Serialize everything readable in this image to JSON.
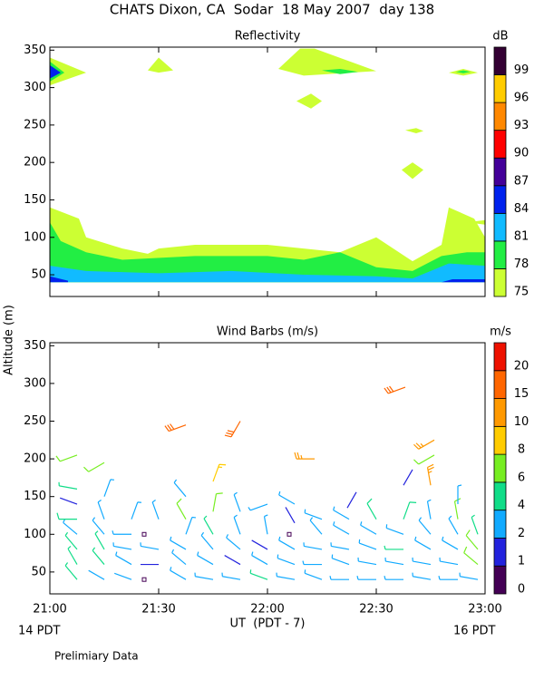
{
  "title": "CHATS Dixon, CA  Sodar  18 May 2007  day 138",
  "ylabel": "Altitude (m)",
  "xlabel": "UT  (PDT - 7)",
  "left_note": "14 PDT",
  "right_note": "16 PDT",
  "footnote": "Prelimiary Data",
  "chart_data": [
    {
      "type": "contour",
      "title": "Reflectivity",
      "xlim": [
        0,
        120
      ],
      "ylim": [
        21,
        354
      ],
      "yticks": [
        50,
        100,
        150,
        200,
        250,
        300,
        350
      ],
      "colorbar": {
        "title": "dB",
        "levels": [
          75,
          78,
          81,
          84,
          87,
          90,
          93,
          96,
          99
        ],
        "colors": [
          "#ccff33",
          "#22ee44",
          "#11bbff",
          "#0022ee",
          "#440099",
          "#ff0000",
          "#ff8800",
          "#ffcc00",
          "#330033"
        ]
      },
      "regions": [
        {
          "level": 75,
          "points": [
            [
              0,
              140
            ],
            [
              8,
              125
            ],
            [
              10,
              100
            ],
            [
              20,
              85
            ],
            [
              27,
              78
            ],
            [
              30,
              85
            ],
            [
              40,
              90
            ],
            [
              60,
              90
            ],
            [
              70,
              85
            ],
            [
              80,
              80
            ],
            [
              90,
              100
            ],
            [
              100,
              68
            ],
            [
              108,
              90
            ],
            [
              110,
              140
            ],
            [
              117,
              125
            ],
            [
              120,
              100
            ],
            [
              120,
              40
            ],
            [
              0,
              40
            ]
          ]
        },
        {
          "level": 75,
          "points": [
            [
              0,
              340
            ],
            [
              10,
              320
            ],
            [
              0,
              303
            ]
          ]
        },
        {
          "level": 75,
          "points": [
            [
              27,
              323
            ],
            [
              30,
              340
            ],
            [
              34,
              323
            ],
            [
              30,
              320
            ]
          ]
        },
        {
          "level": 75,
          "points": [
            [
              63,
              325
            ],
            [
              69,
              352
            ],
            [
              73,
              352
            ],
            [
              90,
              322
            ],
            [
              70,
              316
            ]
          ]
        },
        {
          "level": 75,
          "points": [
            [
              68,
              282
            ],
            [
              72,
              292
            ],
            [
              75,
              282
            ],
            [
              72,
              272
            ]
          ]
        },
        {
          "level": 75,
          "points": [
            [
              98,
              243
            ],
            [
              101,
              246
            ],
            [
              103,
              242
            ],
            [
              101,
              239
            ]
          ]
        },
        {
          "level": 75,
          "points": [
            [
              97,
              190
            ],
            [
              100,
              200
            ],
            [
              103,
              190
            ],
            [
              100,
              178
            ]
          ]
        },
        {
          "level": 75,
          "points": [
            [
              110,
              320
            ],
            [
              114,
              325
            ],
            [
              118,
              320
            ],
            [
              114,
              316
            ]
          ]
        },
        {
          "level": 75,
          "points": [
            [
              115,
              120
            ],
            [
              120,
              123
            ],
            [
              120,
              117
            ]
          ]
        },
        {
          "level": 78,
          "points": [
            [
              0,
              120
            ],
            [
              3,
              95
            ],
            [
              10,
              80
            ],
            [
              20,
              70
            ],
            [
              40,
              75
            ],
            [
              60,
              75
            ],
            [
              70,
              70
            ],
            [
              80,
              80
            ],
            [
              90,
              60
            ],
            [
              100,
              55
            ],
            [
              108,
              75
            ],
            [
              115,
              80
            ],
            [
              120,
              80
            ],
            [
              120,
              40
            ],
            [
              0,
              40
            ]
          ]
        },
        {
          "level": 78,
          "points": [
            [
              0,
              335
            ],
            [
              4,
              320
            ],
            [
              0,
              308
            ]
          ]
        },
        {
          "level": 78,
          "points": [
            [
              75,
              323
            ],
            [
              80,
              325
            ],
            [
              85,
              321
            ],
            [
              80,
              318
            ]
          ]
        },
        {
          "level": 78,
          "points": [
            [
              112,
              321
            ],
            [
              114,
              323
            ],
            [
              116,
              321
            ],
            [
              114,
              319
            ]
          ]
        },
        {
          "level": 81,
          "points": [
            [
              0,
              62
            ],
            [
              10,
              55
            ],
            [
              30,
              52
            ],
            [
              50,
              55
            ],
            [
              70,
              50
            ],
            [
              90,
              48
            ],
            [
              100,
              45
            ],
            [
              110,
              65
            ],
            [
              120,
              62
            ],
            [
              120,
              40
            ],
            [
              0,
              40
            ]
          ]
        },
        {
          "level": 84,
          "points": [
            [
              0,
              48
            ],
            [
              5,
              42
            ],
            [
              5,
              40
            ],
            [
              0,
              40
            ]
          ]
        },
        {
          "level": 84,
          "points": [
            [
              0,
              330
            ],
            [
              3,
              320
            ],
            [
              0,
              312
            ]
          ]
        },
        {
          "level": 84,
          "points": [
            [
              108,
              40
            ],
            [
              111,
              44
            ],
            [
              120,
              44
            ],
            [
              120,
              40
            ]
          ]
        }
      ]
    },
    {
      "type": "barbs",
      "title": "Wind Barbs (m/s)",
      "xlim": [
        0,
        120
      ],
      "ylim": [
        21,
        354
      ],
      "yticks": [
        50,
        100,
        150,
        200,
        250,
        300,
        350
      ],
      "xticks": [
        {
          "value": 0,
          "label": "21:00"
        },
        {
          "value": 30,
          "label": "21:30"
        },
        {
          "value": 60,
          "label": "22:00"
        },
        {
          "value": 90,
          "label": "22:30"
        },
        {
          "value": 120,
          "label": "23:00"
        }
      ],
      "colorbar": {
        "title": "m/s",
        "levels": [
          0,
          1,
          2,
          4,
          6,
          8,
          10,
          15,
          20
        ],
        "colors": [
          "#440055",
          "#2222dd",
          "#11aaff",
          "#11dd88",
          "#77ee22",
          "#ffcc00",
          "#ff9900",
          "#ff6600",
          "#ee1100"
        ]
      },
      "barbs": [
        [
          7.5,
          40,
          4,
          320
        ],
        [
          7.5,
          60,
          4,
          330
        ],
        [
          7.5,
          80,
          4,
          320
        ],
        [
          7.5,
          100,
          3,
          310
        ],
        [
          7.5,
          120,
          5,
          270
        ],
        [
          7.5,
          140,
          1,
          290
        ],
        [
          7.5,
          160,
          4,
          280
        ],
        [
          7.5,
          205,
          6,
          250
        ],
        [
          15,
          40,
          2,
          300
        ],
        [
          15,
          60,
          4,
          320
        ],
        [
          15,
          80,
          4,
          330
        ],
        [
          15,
          100,
          3,
          320
        ],
        [
          15,
          120,
          3,
          340
        ],
        [
          15,
          150,
          3,
          20
        ],
        [
          15,
          195,
          6,
          240
        ],
        [
          22.5,
          40,
          2,
          290
        ],
        [
          22.5,
          60,
          3,
          300
        ],
        [
          22.5,
          80,
          3,
          280
        ],
        [
          22.5,
          100,
          3,
          270
        ],
        [
          22.5,
          120,
          3,
          20
        ],
        [
          26,
          40,
          0,
          0
        ],
        [
          26,
          100,
          0,
          0
        ],
        [
          30,
          60,
          1,
          270
        ],
        [
          30,
          80,
          3,
          280
        ],
        [
          30,
          120,
          3,
          340
        ],
        [
          37.5,
          40,
          3,
          300
        ],
        [
          37.5,
          60,
          3,
          310
        ],
        [
          37.5,
          80,
          3,
          300
        ],
        [
          37.5,
          100,
          3,
          20
        ],
        [
          37.5,
          120,
          6,
          330
        ],
        [
          37.5,
          150,
          3,
          320
        ],
        [
          37.5,
          245,
          15,
          250
        ],
        [
          45,
          40,
          3,
          280
        ],
        [
          45,
          60,
          3,
          300
        ],
        [
          45,
          80,
          3,
          320
        ],
        [
          45,
          100,
          4,
          330
        ],
        [
          45,
          130,
          7,
          10
        ],
        [
          45,
          170,
          8,
          20
        ],
        [
          52.5,
          40,
          3,
          280
        ],
        [
          52.5,
          60,
          1,
          300
        ],
        [
          52.5,
          80,
          3,
          310
        ],
        [
          52.5,
          100,
          3,
          340
        ],
        [
          52.5,
          130,
          3,
          340
        ],
        [
          52.5,
          250,
          15,
          210
        ],
        [
          60,
          40,
          4,
          290
        ],
        [
          60,
          60,
          3,
          300
        ],
        [
          60,
          80,
          1,
          300
        ],
        [
          60,
          100,
          3,
          350
        ],
        [
          60,
          140,
          3,
          250
        ],
        [
          67.5,
          40,
          3,
          280
        ],
        [
          67.5,
          60,
          3,
          290
        ],
        [
          67.5,
          80,
          3,
          300
        ],
        [
          66,
          100,
          0,
          0
        ],
        [
          67.5,
          115,
          1,
          330
        ],
        [
          67.5,
          140,
          3,
          300
        ],
        [
          73,
          200,
          14,
          270
        ],
        [
          75,
          40,
          3,
          290
        ],
        [
          75,
          60,
          3,
          270
        ],
        [
          75,
          80,
          3,
          280
        ],
        [
          75,
          100,
          3,
          320
        ],
        [
          75,
          120,
          3,
          290
        ],
        [
          82.5,
          40,
          3,
          270
        ],
        [
          82.5,
          60,
          3,
          290
        ],
        [
          82.5,
          80,
          3,
          280
        ],
        [
          82.5,
          100,
          3,
          300
        ],
        [
          82.5,
          120,
          3,
          300
        ],
        [
          82,
          135,
          1,
          30
        ],
        [
          90,
          40,
          3,
          270
        ],
        [
          90,
          60,
          3,
          280
        ],
        [
          90,
          80,
          3,
          290
        ],
        [
          90,
          100,
          3,
          300
        ],
        [
          90,
          120,
          5,
          330
        ],
        [
          97.5,
          40,
          3,
          270
        ],
        [
          97.5,
          60,
          3,
          280
        ],
        [
          97.5,
          80,
          4,
          270
        ],
        [
          97.5,
          100,
          3,
          290
        ],
        [
          97.5,
          120,
          5,
          20
        ],
        [
          97.5,
          165,
          1,
          30
        ],
        [
          98,
          295,
          15,
          250
        ],
        [
          105,
          40,
          3,
          280
        ],
        [
          105,
          60,
          3,
          280
        ],
        [
          105,
          80,
          3,
          300
        ],
        [
          105,
          100,
          3,
          320
        ],
        [
          105,
          120,
          3,
          350
        ],
        [
          105,
          165,
          14,
          350
        ],
        [
          106,
          205,
          6,
          240
        ],
        [
          106,
          225,
          14,
          240
        ],
        [
          112.5,
          40,
          3,
          270
        ],
        [
          112.5,
          60,
          3,
          280
        ],
        [
          112.5,
          80,
          3,
          300
        ],
        [
          112.5,
          100,
          3,
          330
        ],
        [
          112.5,
          120,
          6,
          350
        ],
        [
          112.5,
          140,
          3,
          0
        ],
        [
          118,
          40,
          3,
          280
        ],
        [
          118,
          60,
          6,
          310
        ],
        [
          118,
          80,
          6,
          320
        ],
        [
          118,
          100,
          4,
          340
        ]
      ]
    }
  ]
}
